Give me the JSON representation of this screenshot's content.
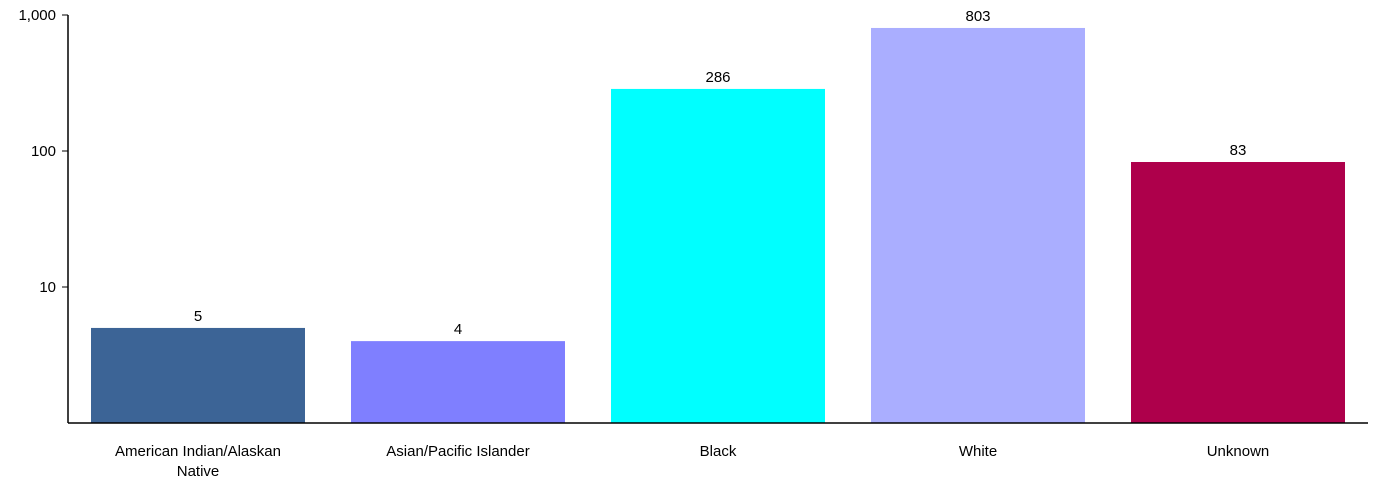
{
  "chart_data": {
    "type": "bar",
    "title": "",
    "xlabel": "",
    "ylabel": "",
    "yscale": "log",
    "ylim": [
      1,
      1000
    ],
    "yticks": [
      {
        "value": 10,
        "label": "10"
      },
      {
        "value": 100,
        "label": "100"
      },
      {
        "value": 1000,
        "label": "1,000"
      }
    ],
    "grid": false,
    "legend": "none",
    "categories": [
      {
        "lines": [
          "American Indian/Alaskan",
          "Native"
        ]
      },
      {
        "lines": [
          "Asian/Pacific Islander"
        ]
      },
      {
        "lines": [
          "Black"
        ]
      },
      {
        "lines": [
          "White"
        ]
      },
      {
        "lines": [
          "Unknown"
        ]
      }
    ],
    "values": [
      5,
      4,
      286,
      803,
      83
    ],
    "value_labels": [
      "5",
      "4",
      "286",
      "803",
      "83"
    ],
    "colors": [
      "#3C6496",
      "#7F7FFF",
      "#00FFFF",
      "#AAAEFF",
      "#AE004B"
    ]
  }
}
